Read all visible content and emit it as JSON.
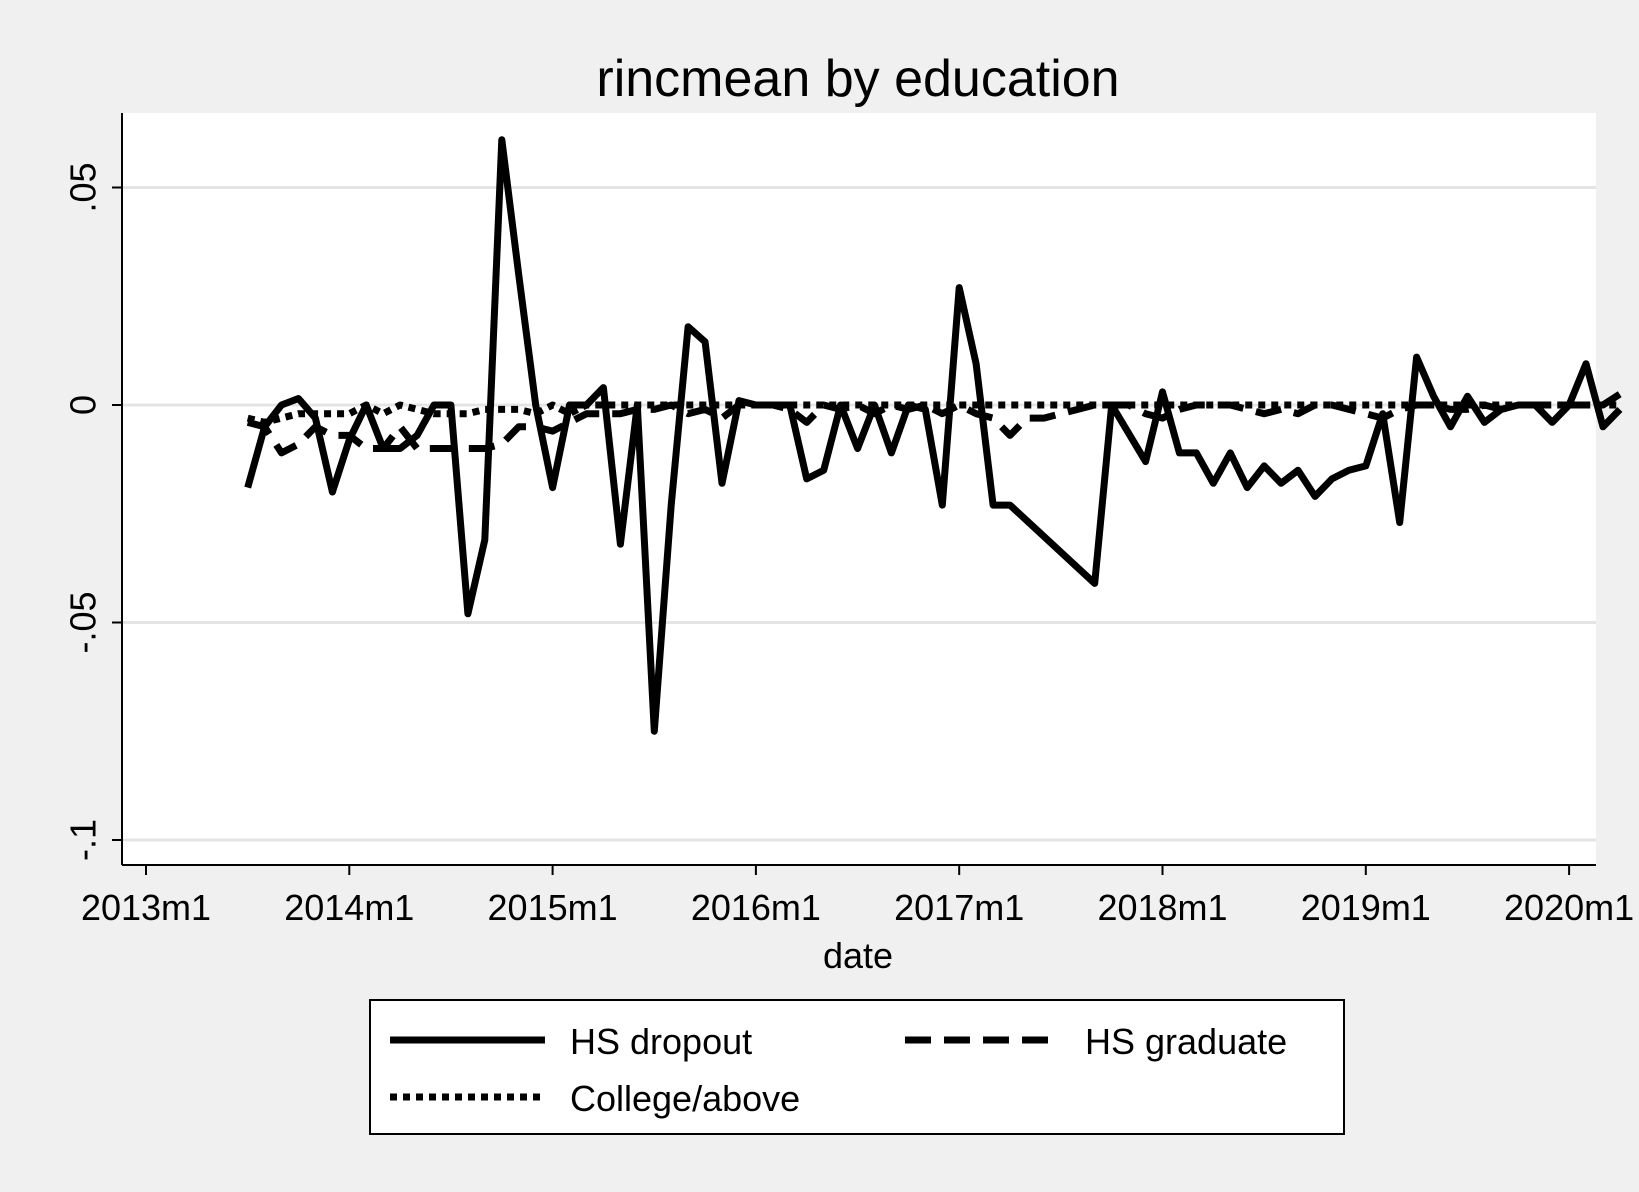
{
  "chart_data": {
    "type": "line",
    "title": "rincmean by education",
    "xlabel": "date",
    "ylabel": "",
    "xlim": [
      "2013-01",
      "2020-01"
    ],
    "ylim": [
      -0.1,
      0.05
    ],
    "x_ticks": [
      {
        "value": "2013-01",
        "label": "2013m1"
      },
      {
        "value": "2014-01",
        "label": "2014m1"
      },
      {
        "value": "2015-01",
        "label": "2015m1"
      },
      {
        "value": "2016-01",
        "label": "2016m1"
      },
      {
        "value": "2017-01",
        "label": "2017m1"
      },
      {
        "value": "2018-01",
        "label": "2018m1"
      },
      {
        "value": "2019-01",
        "label": "2019m1"
      },
      {
        "value": "2020-01",
        "label": "2020m1"
      }
    ],
    "y_ticks": [
      {
        "value": 0.05,
        "label": ".05"
      },
      {
        "value": 0,
        "label": "0"
      },
      {
        "value": -0.05,
        "label": "-.05"
      },
      {
        "value": -0.1,
        "label": "-.1"
      }
    ],
    "grid": true,
    "legend_position": "bottom",
    "series": [
      {
        "name": "HS dropout",
        "style": "solid",
        "color": "#000000",
        "points": [
          [
            "2013-07",
            -0.019
          ],
          [
            "2013-08",
            -0.005
          ],
          [
            "2013-09",
            0.0
          ],
          [
            "2013-10",
            0.0015
          ],
          [
            "2013-11",
            -0.003
          ],
          [
            "2013-12",
            -0.02
          ],
          [
            "2014-01",
            -0.008
          ],
          [
            "2014-02",
            0.0
          ],
          [
            "2014-03",
            -0.01
          ],
          [
            "2014-04",
            -0.01
          ],
          [
            "2014-05",
            -0.007
          ],
          [
            "2014-06",
            0.0
          ],
          [
            "2014-07",
            0.0
          ],
          [
            "2014-08",
            -0.048
          ],
          [
            "2014-09",
            -0.031
          ],
          [
            "2014-10",
            0.061
          ],
          [
            "2014-11",
            0.03
          ],
          [
            "2014-12",
            0.0
          ],
          [
            "2015-01",
            -0.019
          ],
          [
            "2015-02",
            0.0
          ],
          [
            "2015-03",
            0.0
          ],
          [
            "2015-04",
            0.004
          ],
          [
            "2015-05",
            -0.032
          ],
          [
            "2015-06",
            0.0
          ],
          [
            "2015-07",
            -0.075
          ],
          [
            "2015-08",
            -0.023
          ],
          [
            "2015-09",
            0.018
          ],
          [
            "2015-10",
            0.0145
          ],
          [
            "2015-11",
            -0.018
          ],
          [
            "2015-12",
            0.001
          ],
          [
            "2016-01",
            0.0
          ],
          [
            "2016-02",
            0.0
          ],
          [
            "2016-03",
            0.0
          ],
          [
            "2016-04",
            -0.017
          ],
          [
            "2016-05",
            -0.015
          ],
          [
            "2016-06",
            0.0
          ],
          [
            "2016-07",
            -0.01
          ],
          [
            "2016-08",
            0.0
          ],
          [
            "2016-09",
            -0.011
          ],
          [
            "2016-10",
            0.0
          ],
          [
            "2016-11",
            -0.001
          ],
          [
            "2016-12",
            -0.023
          ],
          [
            "2017-01",
            0.027
          ],
          [
            "2017-02",
            0.0095
          ],
          [
            "2017-03",
            -0.023
          ],
          [
            "2017-04",
            -0.023
          ],
          [
            "2017-09",
            -0.041
          ],
          [
            "2017-10",
            0.0
          ],
          [
            "2017-12",
            -0.013
          ],
          [
            "2018-01",
            0.003
          ],
          [
            "2018-02",
            -0.011
          ],
          [
            "2018-03",
            -0.011
          ],
          [
            "2018-04",
            -0.018
          ],
          [
            "2018-05",
            -0.011
          ],
          [
            "2018-06",
            -0.019
          ],
          [
            "2018-07",
            -0.014
          ],
          [
            "2018-08",
            -0.018
          ],
          [
            "2018-09",
            -0.015
          ],
          [
            "2018-10",
            -0.021
          ],
          [
            "2018-11",
            -0.017
          ],
          [
            "2018-12",
            -0.015
          ],
          [
            "2019-01",
            -0.014
          ],
          [
            "2019-02",
            -0.002
          ],
          [
            "2019-03",
            -0.027
          ],
          [
            "2019-04",
            0.011
          ],
          [
            "2019-05",
            0.002
          ],
          [
            "2019-06",
            -0.005
          ],
          [
            "2019-07",
            0.002
          ],
          [
            "2019-08",
            -0.004
          ],
          [
            "2019-09",
            -0.001
          ],
          [
            "2019-10",
            0.0
          ],
          [
            "2019-11",
            0.0
          ],
          [
            "2019-12",
            -0.004
          ],
          [
            "2020-01",
            0.0
          ],
          [
            "2020-02",
            0.0095
          ],
          [
            "2020-03",
            -0.005
          ],
          [
            "2020-04",
            -0.001
          ]
        ]
      },
      {
        "name": "HS graduate",
        "style": "dashed",
        "color": "#000000",
        "points": [
          [
            "2013-07",
            -0.004
          ],
          [
            "2013-08",
            -0.005
          ],
          [
            "2013-09",
            -0.011
          ],
          [
            "2013-10",
            -0.009
          ],
          [
            "2013-11",
            -0.005
          ],
          [
            "2013-12",
            -0.007
          ],
          [
            "2014-01",
            -0.007
          ],
          [
            "2014-02",
            -0.01
          ],
          [
            "2014-03",
            -0.01
          ],
          [
            "2014-04",
            -0.005
          ],
          [
            "2014-05",
            -0.01
          ],
          [
            "2014-06",
            -0.01
          ],
          [
            "2014-07",
            -0.01
          ],
          [
            "2014-08",
            -0.01
          ],
          [
            "2014-09",
            -0.01
          ],
          [
            "2014-10",
            -0.009
          ],
          [
            "2014-11",
            -0.005
          ],
          [
            "2014-12",
            -0.005
          ],
          [
            "2015-01",
            -0.006
          ],
          [
            "2015-02",
            -0.004
          ],
          [
            "2015-03",
            -0.002
          ],
          [
            "2015-04",
            -0.002
          ],
          [
            "2015-05",
            -0.002
          ],
          [
            "2015-06",
            -0.001
          ],
          [
            "2015-07",
            -0.001
          ],
          [
            "2015-08",
            0.0
          ],
          [
            "2015-09",
            -0.002
          ],
          [
            "2015-10",
            -0.001
          ],
          [
            "2015-11",
            -0.003
          ],
          [
            "2015-12",
            0.0
          ],
          [
            "2016-01",
            0.0
          ],
          [
            "2016-02",
            0.0
          ],
          [
            "2016-03",
            -0.001
          ],
          [
            "2016-04",
            -0.004
          ],
          [
            "2016-05",
            0.0
          ],
          [
            "2016-06",
            -0.001
          ],
          [
            "2016-07",
            0.0
          ],
          [
            "2016-08",
            -0.002
          ],
          [
            "2016-09",
            0.0
          ],
          [
            "2016-10",
            -0.001
          ],
          [
            "2016-11",
            0.0
          ],
          [
            "2016-12",
            -0.002
          ],
          [
            "2017-01",
            0.0
          ],
          [
            "2017-02",
            -0.002
          ],
          [
            "2017-03",
            -0.003
          ],
          [
            "2017-04",
            -0.007
          ],
          [
            "2017-05",
            -0.003
          ],
          [
            "2017-06",
            -0.003
          ],
          [
            "2017-07",
            -0.002
          ],
          [
            "2017-08",
            -0.001
          ],
          [
            "2017-09",
            0.0
          ],
          [
            "2017-10",
            0.0
          ],
          [
            "2017-11",
            0.0
          ],
          [
            "2017-12",
            -0.002
          ],
          [
            "2018-01",
            -0.003
          ],
          [
            "2018-02",
            -0.001
          ],
          [
            "2018-03",
            0.0
          ],
          [
            "2018-04",
            0.0
          ],
          [
            "2018-05",
            0.0
          ],
          [
            "2018-06",
            -0.001
          ],
          [
            "2018-07",
            -0.002
          ],
          [
            "2018-08",
            -0.001
          ],
          [
            "2018-09",
            -0.002
          ],
          [
            "2018-10",
            0.0
          ],
          [
            "2018-11",
            0.0
          ],
          [
            "2018-12",
            -0.001
          ],
          [
            "2019-01",
            -0.002
          ],
          [
            "2019-02",
            -0.003
          ],
          [
            "2019-03",
            -0.001
          ],
          [
            "2019-04",
            0.0
          ],
          [
            "2019-05",
            0.0
          ],
          [
            "2019-06",
            -0.001
          ],
          [
            "2019-07",
            -0.001
          ],
          [
            "2019-08",
            0.0
          ],
          [
            "2019-09",
            -0.001
          ],
          [
            "2019-10",
            0.0
          ],
          [
            "2019-11",
            0.0
          ],
          [
            "2019-12",
            0.0
          ],
          [
            "2020-01",
            0.0
          ],
          [
            "2020-02",
            0.0
          ],
          [
            "2020-03",
            0.0
          ],
          [
            "2020-04",
            0.0025
          ]
        ]
      },
      {
        "name": "College/above",
        "style": "dotted",
        "color": "#000000",
        "points": [
          [
            "2013-07",
            -0.003
          ],
          [
            "2013-08",
            -0.004
          ],
          [
            "2013-09",
            -0.003
          ],
          [
            "2013-10",
            -0.002
          ],
          [
            "2013-11",
            -0.002
          ],
          [
            "2013-12",
            -0.002
          ],
          [
            "2014-01",
            -0.002
          ],
          [
            "2014-02",
            0.0
          ],
          [
            "2014-03",
            -0.002
          ],
          [
            "2014-04",
            0.0
          ],
          [
            "2014-05",
            -0.001
          ],
          [
            "2014-06",
            -0.002
          ],
          [
            "2014-07",
            -0.002
          ],
          [
            "2014-08",
            -0.002
          ],
          [
            "2014-09",
            -0.001
          ],
          [
            "2014-10",
            -0.001
          ],
          [
            "2014-11",
            -0.001
          ],
          [
            "2014-12",
            -0.002
          ],
          [
            "2015-01",
            0.0
          ],
          [
            "2015-02",
            -0.002
          ],
          [
            "2015-03",
            0.0
          ],
          [
            "2015-04",
            0.0
          ],
          [
            "2015-05",
            0.0
          ],
          [
            "2015-06",
            0.0
          ],
          [
            "2015-07",
            0.0
          ],
          [
            "2015-08",
            0.0
          ],
          [
            "2015-09",
            0.0
          ],
          [
            "2015-10",
            0.0
          ],
          [
            "2015-11",
            0.0
          ],
          [
            "2015-12",
            0.0
          ],
          [
            "2016-01",
            0.0
          ],
          [
            "2016-02",
            0.0
          ],
          [
            "2016-03",
            0.0
          ],
          [
            "2016-04",
            0.0
          ],
          [
            "2016-05",
            0.0
          ],
          [
            "2016-06",
            0.0
          ],
          [
            "2016-07",
            0.0
          ],
          [
            "2016-08",
            0.0
          ],
          [
            "2016-09",
            0.0
          ],
          [
            "2016-10",
            0.0
          ],
          [
            "2016-11",
            0.0
          ],
          [
            "2016-12",
            0.0
          ],
          [
            "2017-01",
            0.0
          ],
          [
            "2017-02",
            0.0
          ],
          [
            "2017-03",
            0.0
          ],
          [
            "2017-04",
            0.0
          ],
          [
            "2017-05",
            0.0
          ],
          [
            "2017-06",
            0.0
          ],
          [
            "2017-07",
            0.0
          ],
          [
            "2017-08",
            0.0
          ],
          [
            "2017-09",
            0.0
          ],
          [
            "2017-10",
            0.0
          ],
          [
            "2017-11",
            0.0
          ],
          [
            "2017-12",
            0.0
          ],
          [
            "2018-01",
            0.0
          ],
          [
            "2018-02",
            0.0
          ],
          [
            "2018-03",
            0.0
          ],
          [
            "2018-04",
            0.0
          ],
          [
            "2018-05",
            0.0
          ],
          [
            "2018-06",
            0.0
          ],
          [
            "2018-07",
            0.0
          ],
          [
            "2018-08",
            0.0
          ],
          [
            "2018-09",
            0.0
          ],
          [
            "2018-10",
            0.0
          ],
          [
            "2018-11",
            0.0
          ],
          [
            "2018-12",
            0.0
          ],
          [
            "2019-01",
            0.0
          ],
          [
            "2019-02",
            0.0
          ],
          [
            "2019-03",
            0.0
          ],
          [
            "2019-04",
            0.0
          ],
          [
            "2019-05",
            0.0
          ],
          [
            "2019-06",
            0.0
          ],
          [
            "2019-07",
            0.0
          ],
          [
            "2019-08",
            0.0
          ],
          [
            "2019-09",
            0.0
          ],
          [
            "2019-10",
            0.0
          ],
          [
            "2019-11",
            0.0
          ],
          [
            "2019-12",
            0.0
          ],
          [
            "2020-01",
            0.0
          ],
          [
            "2020-02",
            0.0
          ],
          [
            "2020-03",
            0.0
          ],
          [
            "2020-04",
            0.0
          ]
        ]
      }
    ]
  }
}
